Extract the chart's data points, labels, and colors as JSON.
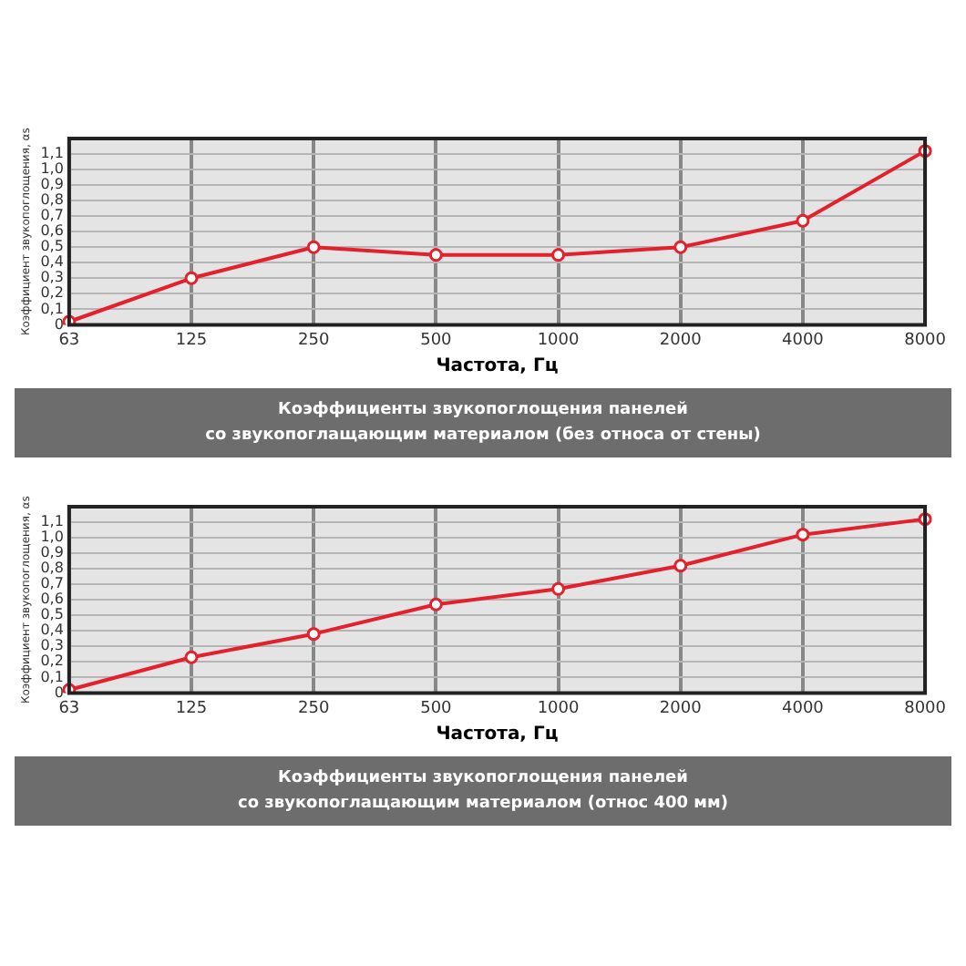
{
  "chart_data": [
    {
      "type": "line",
      "categories": [
        "63",
        "125",
        "250",
        "500",
        "1000",
        "2000",
        "4000",
        "8000"
      ],
      "series": [
        {
          "color": "#e3202b",
          "values": [
            0.02,
            0.3,
            0.5,
            0.45,
            0.45,
            0.5,
            0.67,
            1.12
          ]
        }
      ],
      "xlabel": "Частота, Гц",
      "ylabel": "Коэффициент звукопоглощения, αs",
      "ylim": [
        0,
        1.2
      ],
      "yticks": [
        {
          "value": 0,
          "label": "0"
        },
        {
          "value": 0.1,
          "label": "0,1"
        },
        {
          "value": 0.2,
          "label": "0,2"
        },
        {
          "value": 0.3,
          "label": "0,3"
        },
        {
          "value": 0.4,
          "label": "0,4"
        },
        {
          "value": 0.5,
          "label": "0,5"
        },
        {
          "value": 0.6,
          "label": "0,6"
        },
        {
          "value": 0.7,
          "label": "0,7"
        },
        {
          "value": 0.8,
          "label": "0,8"
        },
        {
          "value": 0.9,
          "label": "0,9"
        },
        {
          "value": 1.0,
          "label": "1,0"
        },
        {
          "value": 1.1,
          "label": "1,1"
        }
      ],
      "grid": true,
      "marker": "circle",
      "legend": false,
      "annotations": [
        "Коэффициенты звукопоглощения панелей\nсо звукопоглащающим материалом (без относа от стены)"
      ]
    },
    {
      "type": "line",
      "categories": [
        "63",
        "125",
        "250",
        "500",
        "1000",
        "2000",
        "4000",
        "8000"
      ],
      "series": [
        {
          "color": "#e3202b",
          "values": [
            0.02,
            0.23,
            0.38,
            0.57,
            0.67,
            0.82,
            1.02,
            1.12
          ]
        }
      ],
      "xlabel": "Частота, Гц",
      "ylabel": "Коэффициент звукопоглощения, αs",
      "ylim": [
        0,
        1.2
      ],
      "yticks": [
        {
          "value": 0,
          "label": "0"
        },
        {
          "value": 0.1,
          "label": "0,1"
        },
        {
          "value": 0.2,
          "label": "0,2"
        },
        {
          "value": 0.3,
          "label": "0,3"
        },
        {
          "value": 0.4,
          "label": "0,4"
        },
        {
          "value": 0.5,
          "label": "0,5"
        },
        {
          "value": 0.6,
          "label": "0,6"
        },
        {
          "value": 0.7,
          "label": "0,7"
        },
        {
          "value": 0.8,
          "label": "0,8"
        },
        {
          "value": 0.9,
          "label": "0,9"
        },
        {
          "value": 1.0,
          "label": "1,0"
        },
        {
          "value": 1.1,
          "label": "1,1"
        }
      ],
      "grid": true,
      "marker": "circle",
      "legend": false,
      "annotations": [
        "Коэффициенты звукопоглощения панелей\nсо звукопоглащающим материалом (относ 400 мм)"
      ]
    }
  ]
}
